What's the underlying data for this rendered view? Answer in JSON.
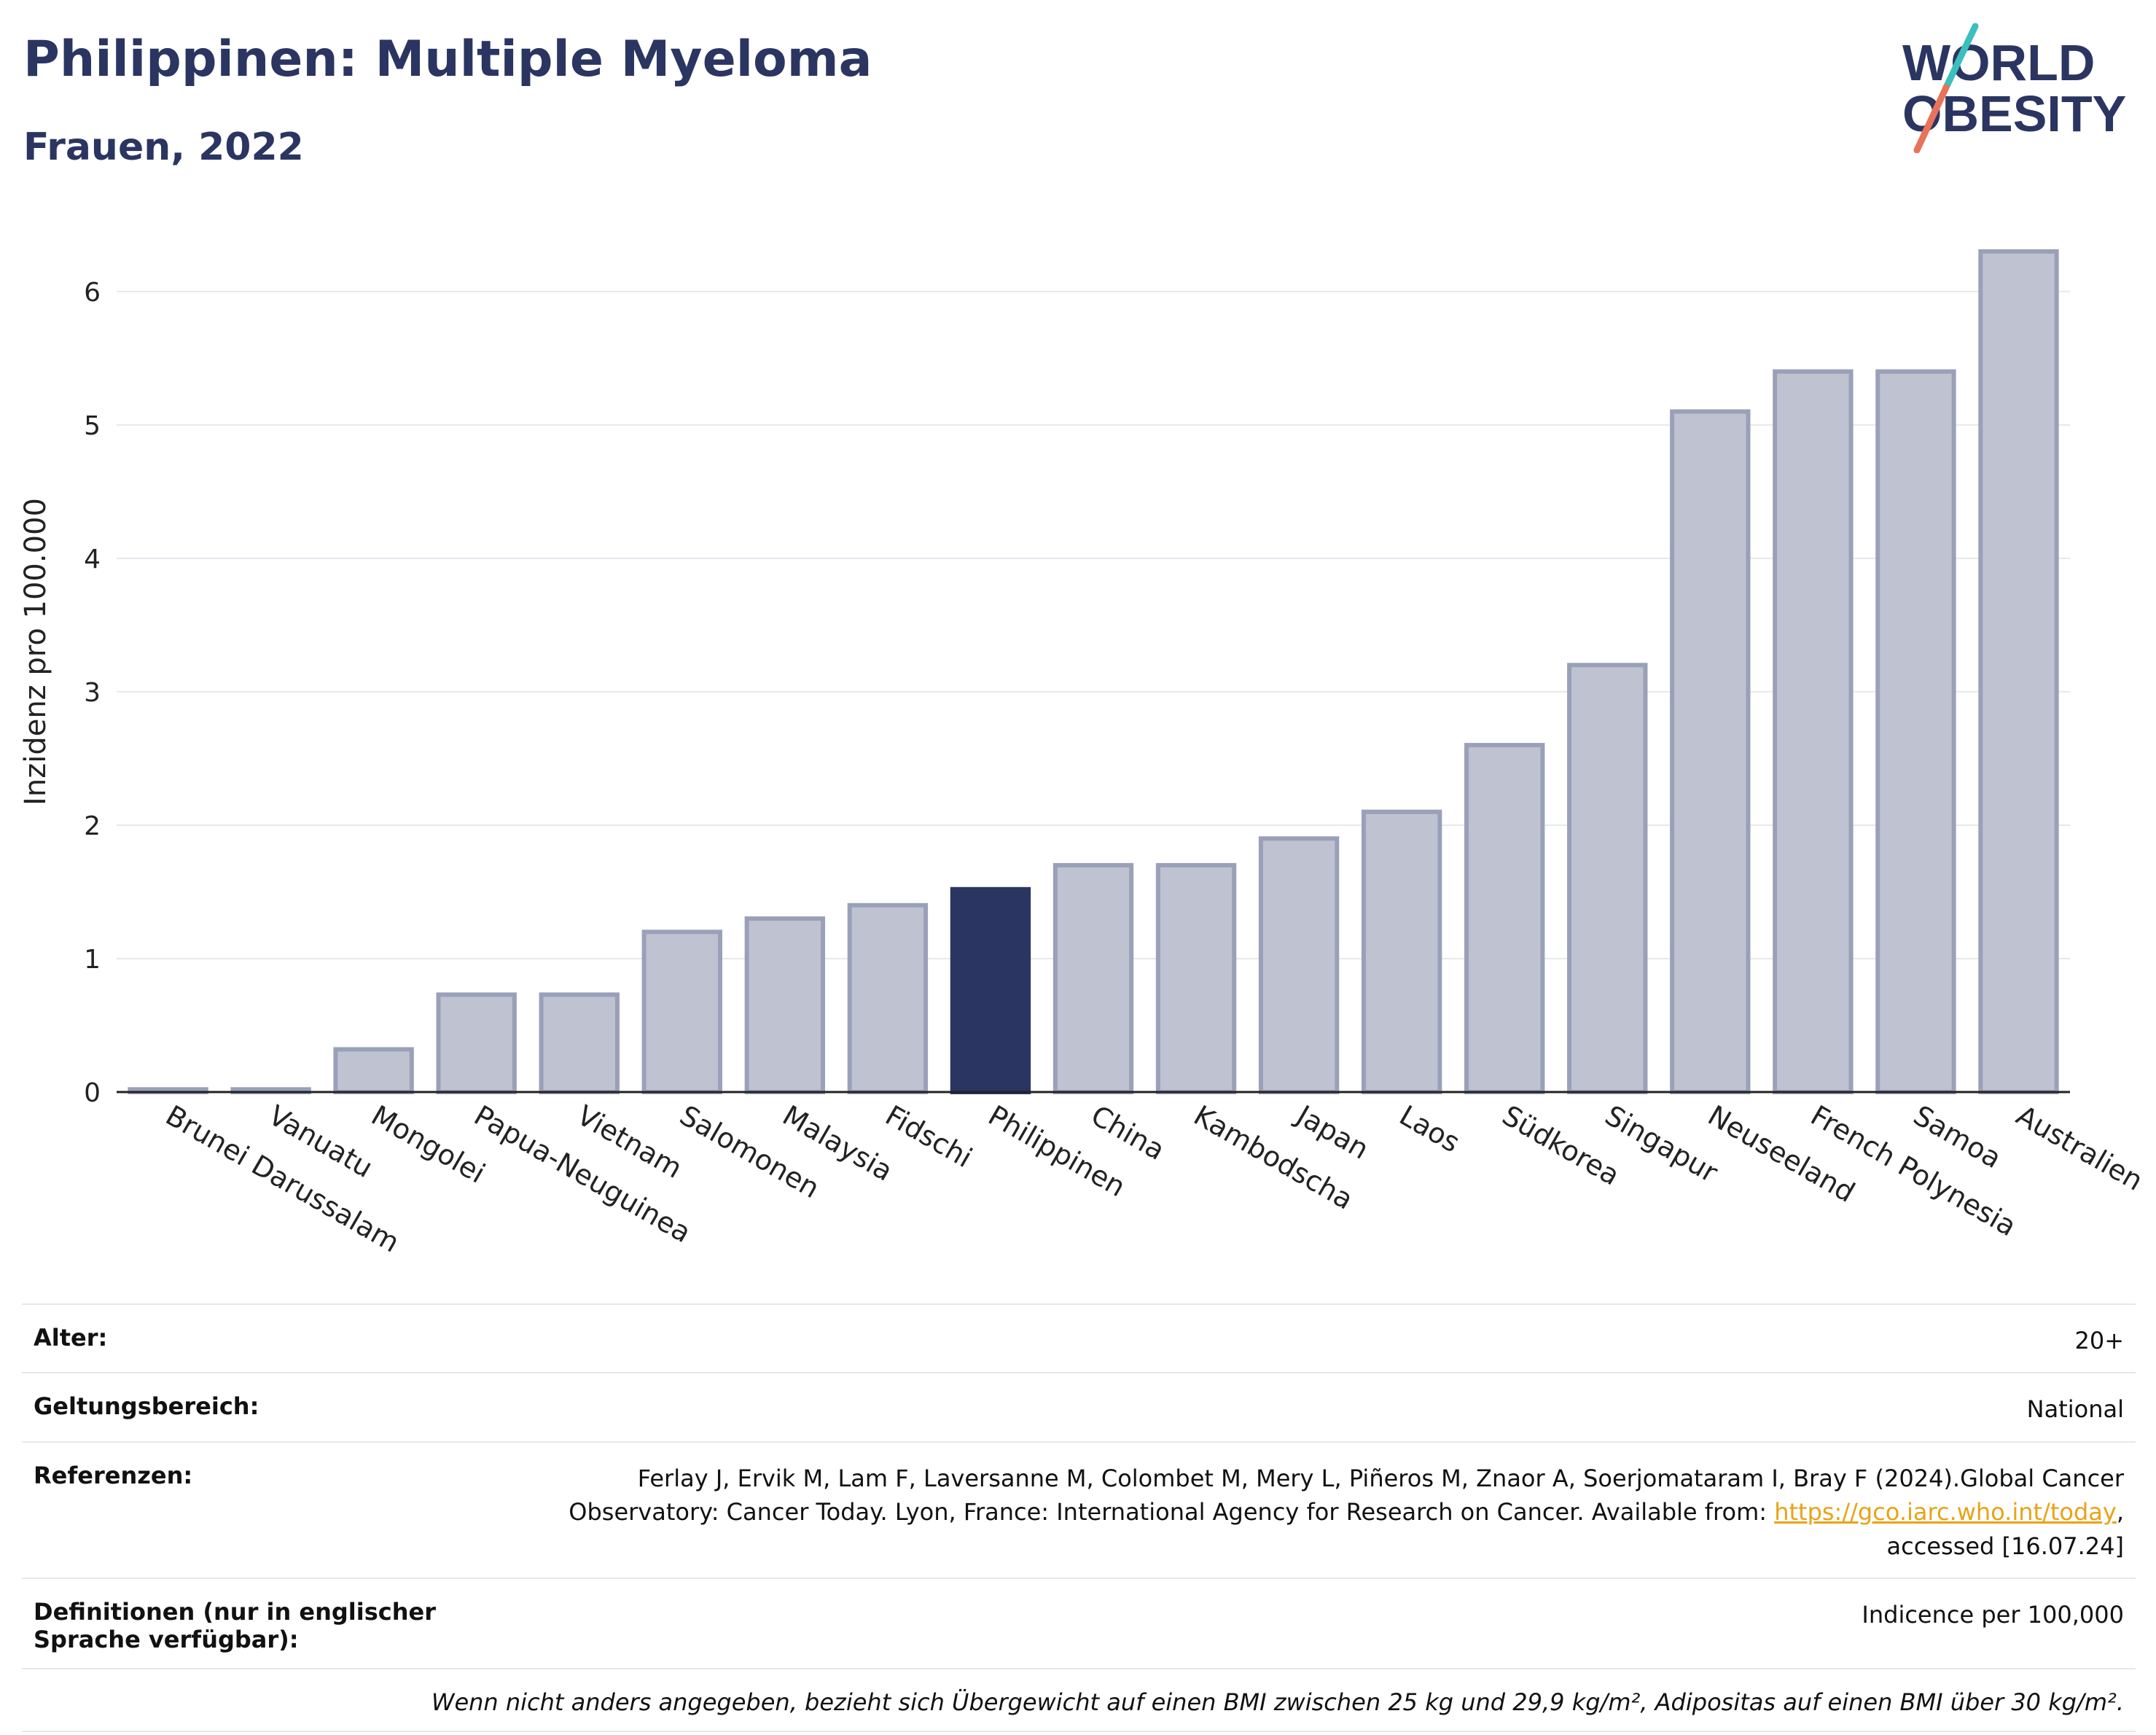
{
  "header": {
    "title": "Philippinen: Multiple Myeloma",
    "subtitle": "Frauen, 2022",
    "logo_line1": "WORLD",
    "logo_line2": "OBESITY"
  },
  "colors": {
    "bar": "#bfc2d1",
    "bar_stroke": "#9aa0b8",
    "highlight": "#2b3561",
    "title": "#2b3561",
    "grid": "#e6e8ef",
    "logo_teal": "#3bbfbf",
    "logo_coral": "#e8735a",
    "link": "#e8a317"
  },
  "chart_data": {
    "type": "bar",
    "categories": [
      "Brunei Darussalam",
      "Vanuatu",
      "Mongolei",
      "Papua-Neuguinea",
      "Vietnam",
      "Salomonen",
      "Malaysia",
      "Fidschi",
      "Philippinen",
      "China",
      "Kambodscha",
      "Japan",
      "Laos",
      "Südkorea",
      "Singapur",
      "Neuseeland",
      "French Polynesia",
      "Samoa",
      "Australien"
    ],
    "values": [
      0.02,
      0.02,
      0.32,
      0.73,
      0.73,
      1.2,
      1.3,
      1.4,
      1.52,
      1.7,
      1.7,
      1.9,
      2.1,
      2.6,
      3.2,
      5.1,
      5.4,
      5.4,
      6.3
    ],
    "highlight": "Philippinen",
    "ylabel": "Inzidenz pro 100.000",
    "ylim": [
      0,
      6.6
    ],
    "yticks": [
      0,
      1,
      2,
      3,
      4,
      5,
      6
    ],
    "grid": true
  },
  "info": {
    "age_label": "Alter:",
    "age_value": "20+",
    "scope_label": "Geltungsbereich:",
    "scope_value": "National",
    "ref_label": "Referenzen:",
    "ref_text_1": "Ferlay J, Ervik M, Lam F, Laversanne M, Colombet M, Mery L, Piñeros M, Znaor A, Soerjomataram I, Bray F (2024).Global Cancer Observatory: Cancer Today. Lyon, France: International Agency for Research on Cancer. Available from: ",
    "ref_link": "https://gco.iarc.who.int/today",
    "ref_text_2": ", accessed [16.07.24]",
    "def_label": "Definitionen (nur in englischer Sprache verfügbar):",
    "def_value": "Indicence per 100,000",
    "note": "Wenn nicht anders angegeben, bezieht sich Übergewicht auf einen BMI zwischen 25 kg und 29,9 kg/m², Adipositas auf einen BMI über 30 kg/m²."
  }
}
